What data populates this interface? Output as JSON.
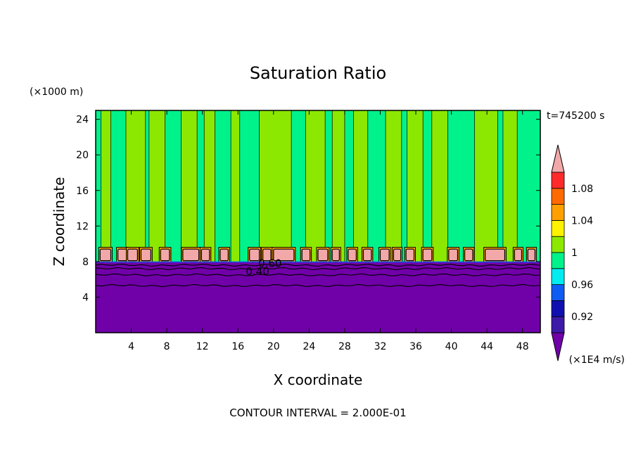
{
  "chart_data": {
    "type": "heatmap",
    "title": "Saturation Ratio",
    "xlabel": "X coordinate",
    "ylabel": "Z coordinate",
    "x_unit": "(×1E4 m/s)",
    "y_unit": "(×1000 m)",
    "time_label": "t=745200 s",
    "footer": "CONTOUR INTERVAL = 2.000E-01",
    "xlim": [
      0,
      50
    ],
    "ylim": [
      0,
      25
    ],
    "x_ticks": [
      4,
      8,
      12,
      16,
      20,
      24,
      28,
      32,
      36,
      40,
      44,
      48
    ],
    "y_ticks": [
      4,
      8,
      12,
      16,
      20,
      24
    ],
    "contour_labels": [
      {
        "text": "0.60",
        "x": 19.6,
        "y": 7.4
      },
      {
        "text": "0.40",
        "x": 18.2,
        "y": 6.5
      }
    ],
    "colorbar": {
      "tick_labels": [
        "0.92",
        "0.96",
        "1",
        "1.04",
        "1.08"
      ],
      "tick_values": [
        0.92,
        0.96,
        1.0,
        1.04,
        1.08
      ],
      "levels": [
        {
          "from": 0.9,
          "to": 0.92,
          "color": "#3d1aa8"
        },
        {
          "from": 0.92,
          "to": 0.94,
          "color": "#1010b0"
        },
        {
          "from": 0.94,
          "to": 0.96,
          "color": "#0f5cf5"
        },
        {
          "from": 0.96,
          "to": 0.98,
          "color": "#00ecf0"
        },
        {
          "from": 0.98,
          "to": 1.0,
          "color": "#00f28a"
        },
        {
          "from": 1.0,
          "to": 1.02,
          "color": "#8ce800"
        },
        {
          "from": 1.02,
          "to": 1.04,
          "color": "#fff200"
        },
        {
          "from": 1.04,
          "to": 1.06,
          "color": "#ffa000"
        },
        {
          "from": 1.06,
          "to": 1.08,
          "color": "#ff6a00"
        },
        {
          "from": 1.08,
          "to": 1.1,
          "color": "#ff2a2a"
        }
      ],
      "under_color": "#7000a8",
      "over_color": "#f2a8a8"
    },
    "field_colors": {
      "subsaturated": "#7000a8",
      "near_one": "#00f28a",
      "above_one": "#8ce800",
      "peak": "#f2a8a8",
      "contour": "#000000"
    },
    "boundary_layer_top": 7.9,
    "plumes": [
      {
        "x0": 0.6,
        "x1": 1.7
      },
      {
        "x0": 3.4,
        "x1": 5.6
      },
      {
        "x0": 6.0,
        "x1": 7.8
      },
      {
        "x0": 9.6,
        "x1": 11.4
      },
      {
        "x0": 12.2,
        "x1": 13.4
      },
      {
        "x0": 15.2,
        "x1": 16.2
      },
      {
        "x0": 18.4,
        "x1": 22.0
      },
      {
        "x0": 23.6,
        "x1": 25.8
      },
      {
        "x0": 26.6,
        "x1": 28.0
      },
      {
        "x0": 29.0,
        "x1": 30.6
      },
      {
        "x0": 32.6,
        "x1": 34.4
      },
      {
        "x0": 35.0,
        "x1": 36.8
      },
      {
        "x0": 37.8,
        "x1": 39.6
      },
      {
        "x0": 42.6,
        "x1": 45.2
      },
      {
        "x0": 45.8,
        "x1": 47.4
      }
    ],
    "cells": [
      {
        "x": 0.5,
        "w": 1.2,
        "hot": true
      },
      {
        "x": 2.5,
        "w": 1.0,
        "hot": true
      },
      {
        "x": 3.6,
        "w": 1.1,
        "hot": true
      },
      {
        "x": 5.1,
        "w": 1.1,
        "hot": true
      },
      {
        "x": 7.3,
        "w": 1.0,
        "hot": true
      },
      {
        "x": 9.8,
        "w": 1.8,
        "hot": true
      },
      {
        "x": 11.9,
        "w": 0.9,
        "hot": true
      },
      {
        "x": 14.0,
        "w": 0.9,
        "hot": true
      },
      {
        "x": 17.3,
        "w": 1.1,
        "hot": true
      },
      {
        "x": 18.8,
        "w": 0.9,
        "hot": true
      },
      {
        "x": 20.0,
        "w": 2.3,
        "hot": true
      },
      {
        "x": 23.2,
        "w": 0.9,
        "hot": true
      },
      {
        "x": 25.0,
        "w": 1.1,
        "hot": true
      },
      {
        "x": 26.6,
        "w": 0.8,
        "hot": true
      },
      {
        "x": 28.4,
        "w": 0.9,
        "hot": true
      },
      {
        "x": 30.1,
        "w": 0.9,
        "hot": true
      },
      {
        "x": 32.0,
        "w": 1.0,
        "hot": true
      },
      {
        "x": 33.5,
        "w": 0.8,
        "hot": true
      },
      {
        "x": 34.9,
        "w": 0.9,
        "hot": true
      },
      {
        "x": 36.8,
        "w": 1.0,
        "hot": true
      },
      {
        "x": 39.7,
        "w": 1.0,
        "hot": true
      },
      {
        "x": 41.5,
        "w": 0.9,
        "hot": true
      },
      {
        "x": 43.8,
        "w": 2.2,
        "hot": true
      },
      {
        "x": 47.1,
        "w": 0.8,
        "hot": true
      },
      {
        "x": 48.6,
        "w": 0.8,
        "hot": true
      }
    ],
    "grid": false
  }
}
